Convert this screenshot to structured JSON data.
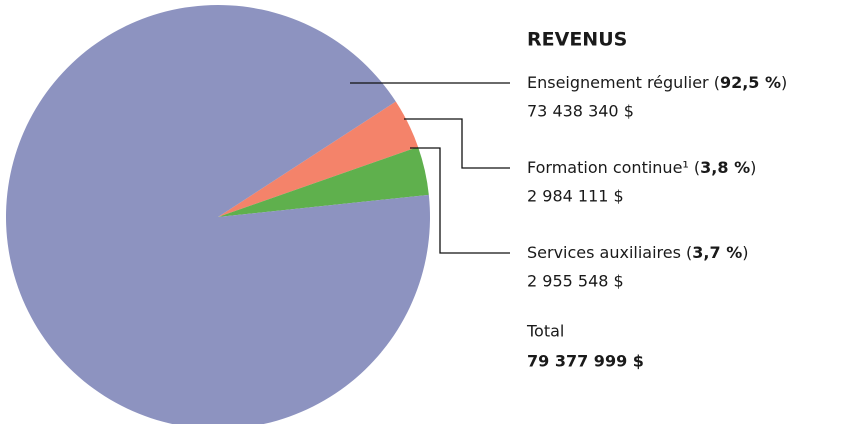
{
  "chart_data": {
    "type": "pie",
    "title": "REVENUS",
    "categories": [
      "Enseignement régulier",
      "Formation continue¹",
      "Services auxiliaires"
    ],
    "values": [
      92.5,
      3.8,
      3.7
    ],
    "value_labels": [
      "92,5 %",
      "3,8 %",
      "3,7 %"
    ],
    "amounts": [
      73438340,
      2984111,
      2955548
    ],
    "amount_labels": [
      "73 438 340 $",
      "2 984 111 $",
      "2 955 548 $"
    ],
    "colors": [
      "#8d93c0",
      "#f4836a",
      "#5fb04d"
    ],
    "total_label": "Total",
    "total": 79377999,
    "total_value_label": "79 377 999 $"
  }
}
